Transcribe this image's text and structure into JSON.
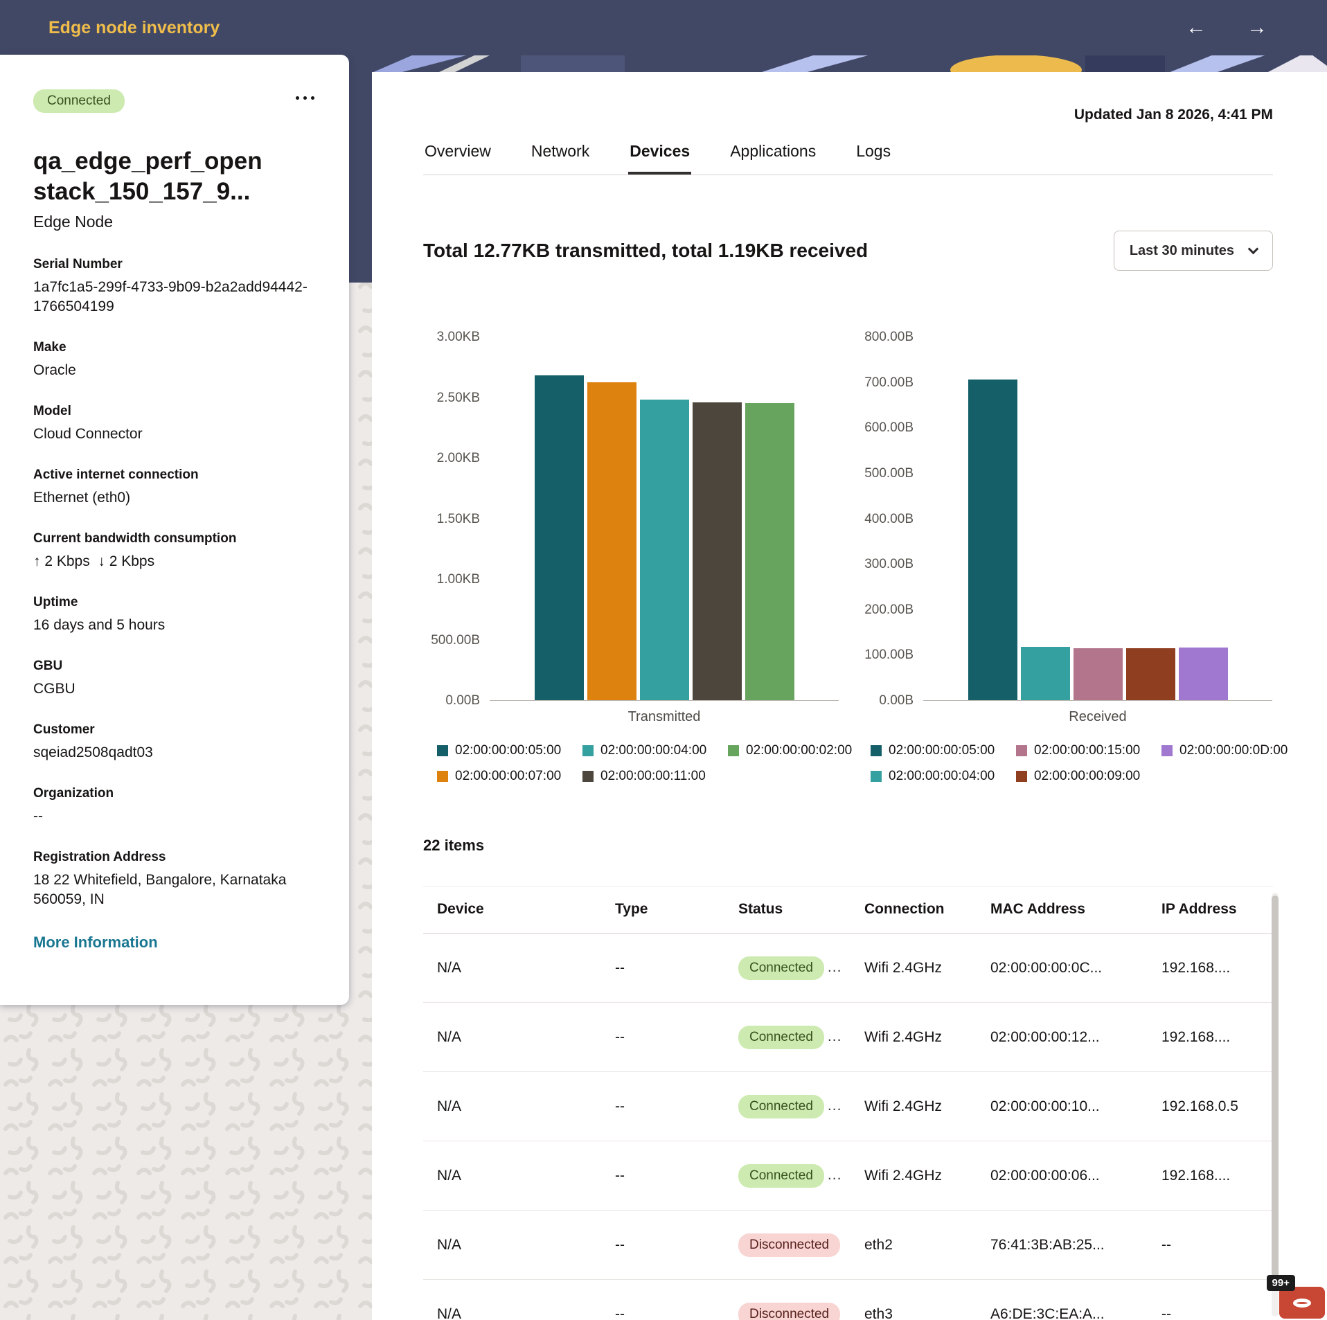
{
  "header": {
    "title": "Edge node inventory",
    "icons": {
      "back": "←",
      "forward": "→"
    }
  },
  "node_card": {
    "status": "Connected",
    "name": "qa_edge_perf_openstack_150_157_9...",
    "subtitle": "Edge Node",
    "fields": [
      {
        "label": "Serial Number",
        "value": "1a7fc1a5-299f-4733-9b09-b2a2add94442-1766504199"
      },
      {
        "label": "Make",
        "value": "Oracle"
      },
      {
        "label": "Model",
        "value": "Cloud Connector"
      },
      {
        "label": "Active internet connection",
        "value": "Ethernet (eth0)"
      },
      {
        "label": "Current bandwidth consumption",
        "value": "↑ 2 Kbps  ↓ 2 Kbps"
      },
      {
        "label": "Uptime",
        "value": "16 days and 5 hours"
      },
      {
        "label": "GBU",
        "value": "CGBU"
      },
      {
        "label": "Customer",
        "value": "sqeiad2508qadt03"
      },
      {
        "label": "Organization",
        "value": "--"
      },
      {
        "label": "Registration Address",
        "value": "18 22 Whitefield, Bangalore, Karnataka 560059, IN"
      }
    ],
    "more_info_label": "More Information"
  },
  "main": {
    "updated": "Updated Jan 8 2026, 4:41 PM",
    "tabs": [
      {
        "label": "Overview",
        "active": false
      },
      {
        "label": "Network",
        "active": false
      },
      {
        "label": "Devices",
        "active": true
      },
      {
        "label": "Applications",
        "active": false
      },
      {
        "label": "Logs",
        "active": false
      }
    ],
    "summary_title": "Total 12.77KB transmitted, total 1.19KB received",
    "time_filter": "Last 30 minutes",
    "items_count": "22 items",
    "table": {
      "columns": [
        "Device",
        "Type",
        "Status",
        "Connection",
        "MAC Address",
        "IP Address"
      ],
      "rows": [
        {
          "device": "N/A",
          "type": "--",
          "status": "Connected",
          "status_more": "...",
          "connection": "Wifi 2.4GHz",
          "mac": "02:00:00:00:0C...",
          "ip": "192.168...."
        },
        {
          "device": "N/A",
          "type": "--",
          "status": "Connected",
          "status_more": "...",
          "connection": "Wifi 2.4GHz",
          "mac": "02:00:00:00:12...",
          "ip": "192.168...."
        },
        {
          "device": "N/A",
          "type": "--",
          "status": "Connected",
          "status_more": "...",
          "connection": "Wifi 2.4GHz",
          "mac": "02:00:00:00:10...",
          "ip": "192.168.0.5"
        },
        {
          "device": "N/A",
          "type": "--",
          "status": "Connected",
          "status_more": "...",
          "connection": "Wifi 2.4GHz",
          "mac": "02:00:00:00:06...",
          "ip": "192.168...."
        },
        {
          "device": "N/A",
          "type": "--",
          "status": "Disconnected",
          "status_more": "",
          "connection": "eth2",
          "mac": "76:41:3B:AB:25...",
          "ip": "--"
        },
        {
          "device": "N/A",
          "type": "--",
          "status": "Disconnected",
          "status_more": "",
          "connection": "eth3",
          "mac": "A6:DE:3C:EA:A...",
          "ip": "--"
        }
      ]
    }
  },
  "chart_data": [
    {
      "type": "bar",
      "title": "Transmitted",
      "xlabel": "Transmitted",
      "ylabel": "",
      "ylim": [
        0,
        3072
      ],
      "yticks": [
        "3.00KB",
        "2.50KB",
        "2.00KB",
        "1.50KB",
        "1.00KB",
        "500.00B",
        "0.00B"
      ],
      "grid": false,
      "legend_position": "bottom",
      "unit": "bytes",
      "series": [
        {
          "name": "02:00:00:00:05:00",
          "bytes": 2744,
          "color": "#155f68"
        },
        {
          "name": "02:00:00:00:07:00",
          "bytes": 2683,
          "color": "#dd820f"
        },
        {
          "name": "02:00:00:00:04:00",
          "bytes": 2540,
          "color": "#35a0a0"
        },
        {
          "name": "02:00:00:00:11:00",
          "bytes": 2519,
          "color": "#4d463c"
        },
        {
          "name": "02:00:00:00:02:00",
          "bytes": 2509,
          "color": "#67a55f"
        }
      ]
    },
    {
      "type": "bar",
      "title": "Received",
      "xlabel": "Received",
      "ylabel": "",
      "ylim": [
        0,
        800
      ],
      "yticks": [
        "800.00B",
        "700.00B",
        "600.00B",
        "500.00B",
        "400.00B",
        "300.00B",
        "200.00B",
        "100.00B",
        "0.00B"
      ],
      "grid": false,
      "legend_position": "bottom",
      "unit": "bytes",
      "series": [
        {
          "name": "02:00:00:00:05:00",
          "bytes": 705,
          "color": "#155f68"
        },
        {
          "name": "02:00:00:00:04:00",
          "bytes": 117,
          "color": "#35a0a0"
        },
        {
          "name": "02:00:00:00:15:00",
          "bytes": 114,
          "color": "#b3758b"
        },
        {
          "name": "02:00:00:00:09:00",
          "bytes": 114,
          "color": "#8f3f1f"
        },
        {
          "name": "02:00:00:00:0D:00",
          "bytes": 116,
          "color": "#a078d0"
        }
      ]
    }
  ],
  "chat": {
    "badge": "99+"
  },
  "colors": {
    "header_bg": "#414866",
    "title_gold": "#f0bd4b",
    "link": "#1a7791",
    "status_connected_bg": "#cdeab0",
    "status_disconnected_bg": "#f8d4d2",
    "oracle_red": "#c74634"
  }
}
